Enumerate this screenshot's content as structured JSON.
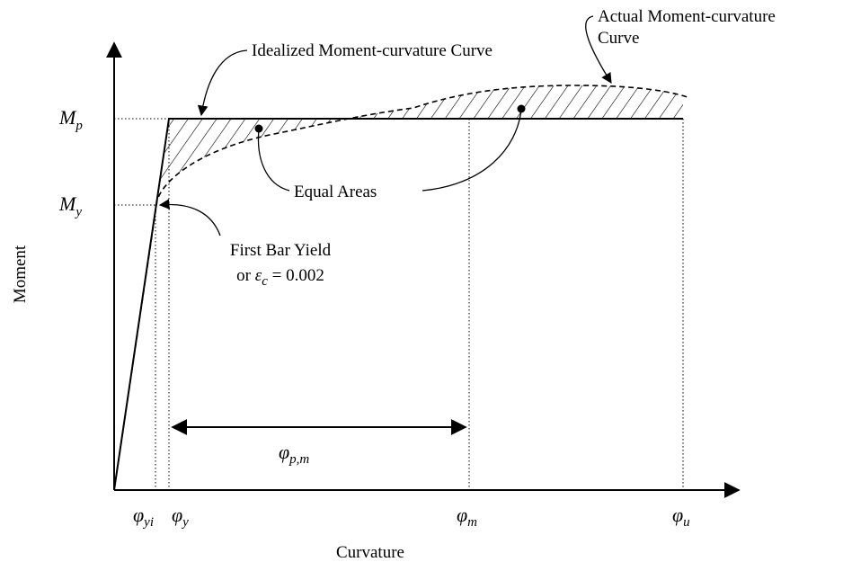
{
  "labels": {
    "idealized": "Idealized Moment-curvature Curve",
    "actual": [
      "Actual Moment-curvature",
      "Curve"
    ],
    "equal_areas": "Equal Areas",
    "first_yield": {
      "line1": "First Bar Yield",
      "prefix": "or",
      "symbol": "ε",
      "sub": "c",
      "suffix": "= 0.002"
    },
    "y_axis": "Moment",
    "x_axis": "Curvature"
  },
  "y_marks": [
    {
      "symbol": "M",
      "sub": "p"
    },
    {
      "symbol": "M",
      "sub": "y"
    }
  ],
  "x_marks": [
    {
      "symbol": "φ",
      "sub": "yi"
    },
    {
      "symbol": "φ",
      "sub": "y"
    },
    {
      "symbol": "φ",
      "sub": "m"
    },
    {
      "symbol": "φ",
      "sub": "u"
    }
  ],
  "span": {
    "symbol": "φ",
    "sub": "p,m"
  }
}
